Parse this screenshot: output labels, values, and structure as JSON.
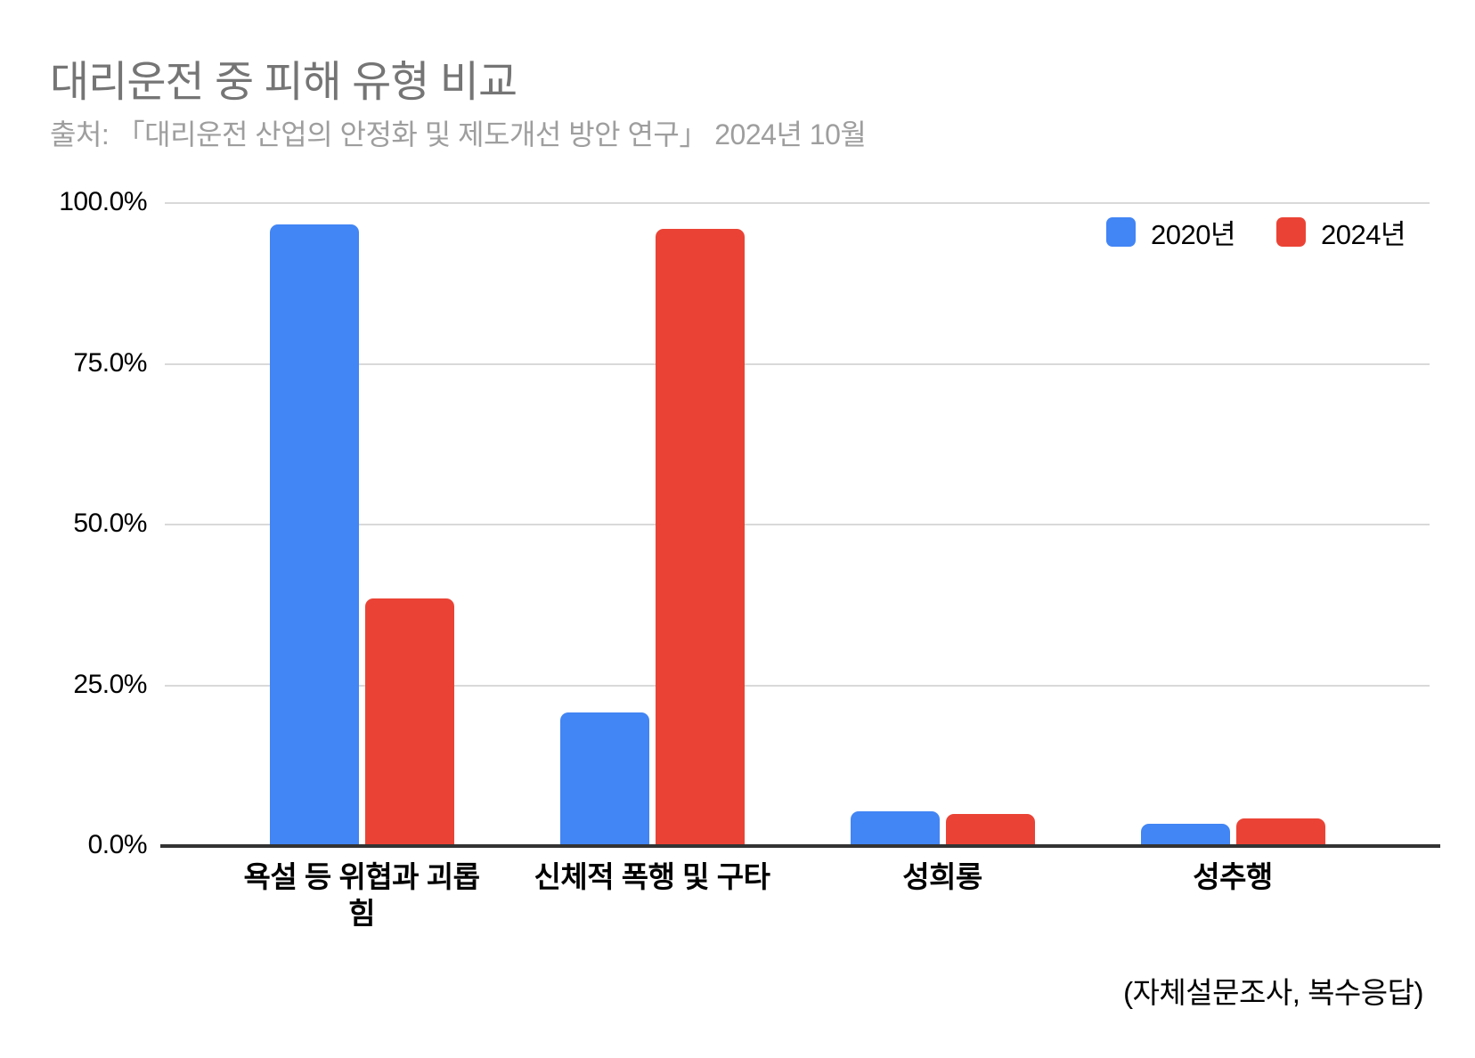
{
  "header": {
    "title": "대리운전 중 피해 유형 비교",
    "subtitle": "출처: 「대리운전 산업의 안정화 및 제도개선 방안 연구」 2024년 10월"
  },
  "footer": {
    "note": "(자체설문조사, 복수응답)"
  },
  "colors": {
    "series_2020": "#4285F4",
    "series_2024": "#EA4335",
    "gridline": "#D9D9D9",
    "axis_line": "#333333",
    "title_gray": "#757575",
    "subtitle_gray": "#9E9E9E"
  },
  "chart_data": {
    "type": "bar",
    "title": "대리운전 중 피해 유형 비교",
    "subtitle": "출처: 「대리운전 산업의 안정화 및 제도개선 방안 연구」 2024년 10월",
    "footnote": "(자체설문조사, 복수응답)",
    "categories": [
      "욕설 등 위협과 괴롭힘",
      "신체적 폭행 및 구타",
      "성희롱",
      "성추행"
    ],
    "series": [
      {
        "name": "2020년",
        "color": "#4285F4",
        "values": [
          96.7,
          20.8,
          5.4,
          3.5
        ]
      },
      {
        "name": "2024년",
        "color": "#EA4335",
        "values": [
          38.5,
          96.0,
          5.0,
          4.3
        ]
      }
    ],
    "xlabel": "",
    "ylabel": "",
    "ylim": [
      0,
      100
    ],
    "yticks": [
      {
        "label": "100.0%",
        "value": 100
      },
      {
        "label": "75.0%",
        "value": 75
      },
      {
        "label": "50.0%",
        "value": 50
      },
      {
        "label": "25.0%",
        "value": 25
      },
      {
        "label": "0.0%",
        "value": 0
      }
    ],
    "grid": true,
    "legend_position": "top-right"
  }
}
